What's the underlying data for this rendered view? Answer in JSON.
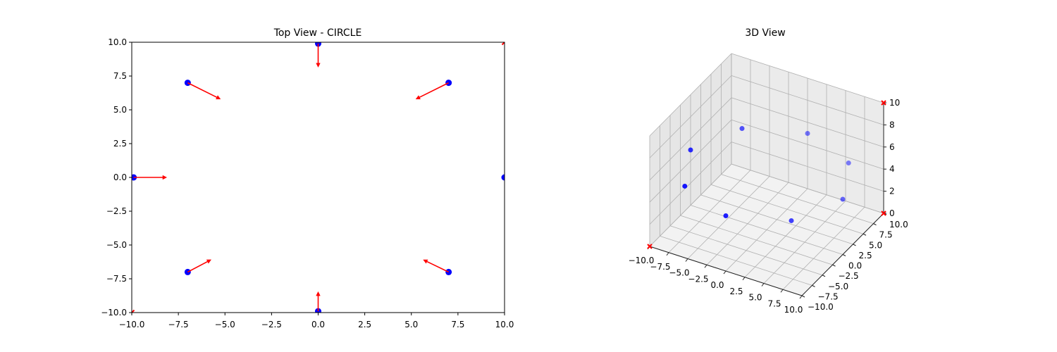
{
  "chart_data": [
    {
      "type": "scatter",
      "title": "Top View - CIRCLE",
      "xlabel": "",
      "ylabel": "",
      "xlim": [
        -10,
        10
      ],
      "ylim": [
        -10,
        10
      ],
      "xticks": [
        "−10.0",
        "−7.5",
        "−5.0",
        "−2.5",
        "0.0",
        "2.5",
        "5.0",
        "7.5",
        "10.0"
      ],
      "yticks": [
        "−10.0",
        "−7.5",
        "−5.0",
        "−2.5",
        "0.0",
        "2.5",
        "5.0",
        "7.5",
        "10.0"
      ],
      "grid": false,
      "points": [
        {
          "x": 10,
          "y": 0,
          "dx": 0,
          "dy": 0
        },
        {
          "x": 7,
          "y": 7,
          "dx": -1.6,
          "dy": -1.1
        },
        {
          "x": 0,
          "y": 9.9,
          "dx": 0,
          "dy": -1.5
        },
        {
          "x": -7,
          "y": 7,
          "dx": 1.6,
          "dy": -1.1
        },
        {
          "x": -9.9,
          "y": 0,
          "dx": 1.6,
          "dy": 0
        },
        {
          "x": -7,
          "y": -7,
          "dx": 1.1,
          "dy": 0.8
        },
        {
          "x": 0,
          "y": -9.9,
          "dx": 0,
          "dy": 1.2
        },
        {
          "x": 7,
          "y": -7,
          "dx": -1.2,
          "dy": 0.8
        }
      ],
      "markers_x": [
        {
          "x": 10,
          "y": 10
        },
        {
          "x": -10,
          "y": -10
        }
      ],
      "colors": {
        "points": "#0000ff",
        "arrows": "#ff0000",
        "markers": "#ff0000"
      }
    },
    {
      "type": "scatter",
      "title": "3D View",
      "xlim": [
        -10,
        10
      ],
      "ylim": [
        -10,
        10
      ],
      "zlim": [
        0,
        10
      ],
      "xticks": [
        "−10.0",
        "−7.5",
        "−5.0",
        "−2.5",
        "0.0",
        "2.5",
        "5.0",
        "7.5",
        "10.0"
      ],
      "yticks": [
        "−10.0",
        "−7.5",
        "−5.0",
        "−2.5",
        "0.0",
        "2.5",
        "5.0",
        "7.5",
        "10.0"
      ],
      "zticks": [
        "0",
        "2",
        "4",
        "6",
        "8",
        "10"
      ],
      "grid": true,
      "points": [
        {
          "x": 10,
          "y": 0,
          "z": 5
        },
        {
          "x": 7,
          "y": 7,
          "z": 5
        },
        {
          "x": 0,
          "y": 10,
          "z": 5
        },
        {
          "x": -7,
          "y": 7,
          "z": 5
        },
        {
          "x": -10,
          "y": 0,
          "z": 5
        },
        {
          "x": -7,
          "y": -7,
          "z": 5
        },
        {
          "x": 0,
          "y": -10,
          "z": 5
        },
        {
          "x": 7,
          "y": -7,
          "z": 5
        }
      ],
      "markers_x": [
        {
          "x": -10,
          "y": -10,
          "z": 0
        },
        {
          "x": 10,
          "y": 10,
          "z": 0
        },
        {
          "x": 10,
          "y": 10,
          "z": 10
        }
      ],
      "colors": {
        "points": "#0000ff",
        "markers": "#ff0000"
      }
    }
  ]
}
